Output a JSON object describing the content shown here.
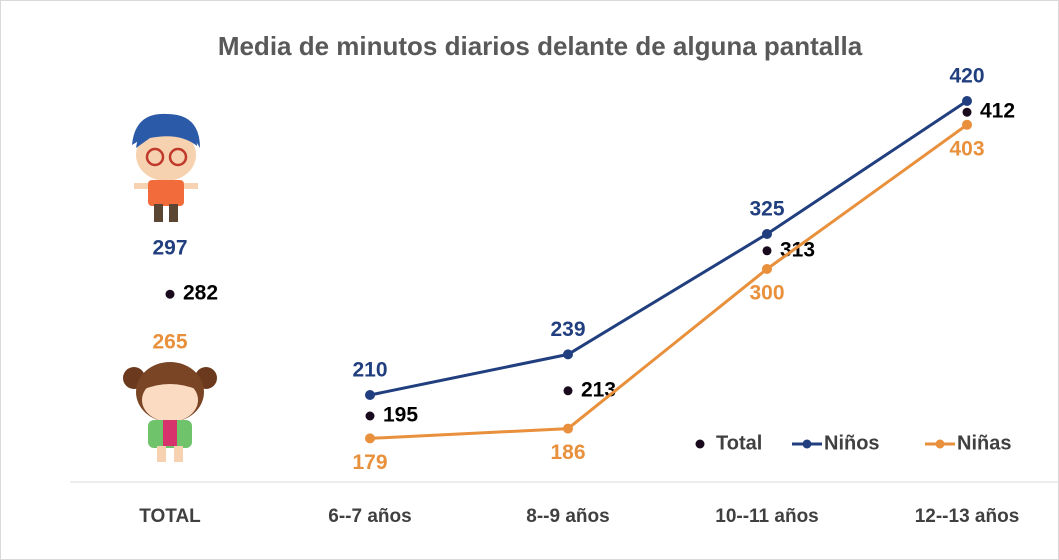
{
  "chart_data": {
    "type": "line",
    "title": "Media de minutos diarios delante de alguna pantalla",
    "categories": [
      "TOTAL",
      "6--7 años",
      "8--9 años",
      "10--11 años",
      "12--13 años"
    ],
    "series": [
      {
        "name": "Total",
        "color": "#1a0a1e",
        "values": [
          282,
          195,
          213,
          313,
          412
        ]
      },
      {
        "name": "Niños",
        "color": "#213f7f",
        "values": [
          297,
          210,
          239,
          325,
          420
        ]
      },
      {
        "name": "Niñas",
        "color": "#e8903c",
        "values": [
          265,
          179,
          186,
          300,
          403
        ]
      }
    ],
    "ylim": [
      150,
      450
    ]
  }
}
